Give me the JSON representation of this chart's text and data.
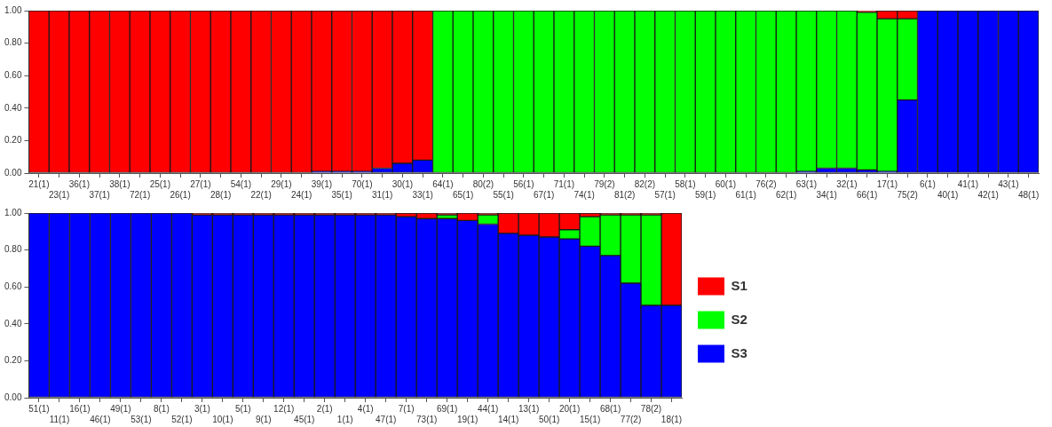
{
  "chart_data": [
    {
      "type": "bar",
      "stacked": true,
      "legend": false,
      "grid": false,
      "categories": [
        "21(1)",
        "23(1)",
        "36(1)",
        "37(1)",
        "38(1)",
        "72(1)",
        "25(1)",
        "26(1)",
        "27(1)",
        "28(1)",
        "54(1)",
        "22(1)",
        "29(1)",
        "24(1)",
        "39(1)",
        "35(1)",
        "70(1)",
        "31(1)",
        "30(1)",
        "33(1)",
        "64(1)",
        "65(1)",
        "80(2)",
        "55(1)",
        "56(1)",
        "67(1)",
        "71(1)",
        "74(1)",
        "79(2)",
        "81(2)",
        "82(2)",
        "57(1)",
        "58(1)",
        "59(1)",
        "60(1)",
        "61(1)",
        "76(2)",
        "62(1)",
        "63(1)",
        "34(1)",
        "32(1)",
        "66(1)",
        "17(1)",
        "75(2)",
        "6(1)",
        "40(1)",
        "41(1)",
        "42(1)",
        "43(1)",
        "48(1)"
      ],
      "ylim": [
        0,
        1
      ],
      "yticks": [
        {
          "value": 0,
          "label": "0.00"
        },
        {
          "value": 0.2,
          "label": "0.20"
        },
        {
          "value": 0.4,
          "label": "0.40"
        },
        {
          "value": 0.6,
          "label": "0.60"
        },
        {
          "value": 0.8,
          "label": "0.80"
        },
        {
          "value": 1,
          "label": "1.00"
        }
      ],
      "series": [
        {
          "color": "#0000ff",
          "values": [
            0,
            0,
            0,
            0,
            0,
            0,
            0,
            0,
            0,
            0,
            0,
            0,
            0,
            0,
            0.01,
            0.01,
            0.01,
            0.03,
            0.06,
            0.08,
            0,
            0,
            0,
            0,
            0,
            0,
            0,
            0,
            0,
            0,
            0,
            0,
            0,
            0,
            0,
            0,
            0,
            0,
            0.01,
            0.03,
            0.03,
            0.02,
            0.01,
            0.45,
            1,
            1,
            1,
            1,
            1,
            1
          ]
        },
        {
          "color": "#00ff00",
          "values": [
            0,
            0,
            0,
            0,
            0,
            0,
            0,
            0,
            0,
            0,
            0,
            0,
            0,
            0,
            0,
            0,
            0,
            0,
            0,
            0,
            1,
            1,
            1,
            1,
            1,
            1,
            1,
            1,
            1,
            1,
            1,
            1,
            1,
            1,
            1,
            1,
            1,
            1,
            0.99,
            0.97,
            0.97,
            0.97,
            0.94,
            0.5,
            0,
            0,
            0,
            0,
            0,
            0
          ]
        },
        {
          "color": "#ff0000",
          "values": [
            1,
            1,
            1,
            1,
            1,
            1,
            1,
            1,
            1,
            1,
            1,
            1,
            1,
            1,
            0.99,
            0.99,
            0.99,
            0.97,
            0.94,
            0.92,
            0,
            0,
            0,
            0,
            0,
            0,
            0,
            0,
            0,
            0,
            0,
            0,
            0,
            0,
            0,
            0,
            0,
            0,
            0,
            0,
            0,
            0.01,
            0.05,
            0.05,
            0,
            0,
            0,
            0,
            0,
            0
          ]
        }
      ]
    },
    {
      "type": "bar",
      "stacked": true,
      "legend": "right",
      "grid": false,
      "categories": [
        "51(1)",
        "11(1)",
        "16(1)",
        "46(1)",
        "49(1)",
        "53(1)",
        "8(1)",
        "52(1)",
        "3(1)",
        "10(1)",
        "5(1)",
        "9(1)",
        "12(1)",
        "45(1)",
        "2(1)",
        "1(1)",
        "4(1)",
        "47(1)",
        "7(1)",
        "73(1)",
        "69(1)",
        "19(1)",
        "44(1)",
        "14(1)",
        "13(1)",
        "50(1)",
        "20(1)",
        "15(1)",
        "68(1)",
        "77(2)",
        "78(2)",
        "18(1)"
      ],
      "ylim": [
        0,
        1
      ],
      "yticks": [
        {
          "value": 0,
          "label": "0.00"
        },
        {
          "value": 0.2,
          "label": "0.20"
        },
        {
          "value": 0.4,
          "label": "0.40"
        },
        {
          "value": 0.6,
          "label": "0.60"
        },
        {
          "value": 0.8,
          "label": "0.80"
        },
        {
          "value": 1,
          "label": "1.00"
        }
      ],
      "series": [
        {
          "name": "S3",
          "color": "#0000ff",
          "values": [
            1,
            1,
            1,
            1,
            1,
            1,
            1,
            1,
            0.99,
            0.99,
            0.99,
            0.99,
            0.99,
            0.99,
            0.99,
            0.99,
            0.99,
            0.99,
            0.98,
            0.97,
            0.97,
            0.96,
            0.94,
            0.89,
            0.88,
            0.87,
            0.86,
            0.82,
            0.77,
            0.62,
            0.5,
            0.5
          ]
        },
        {
          "name": "S2",
          "color": "#00ff00",
          "values": [
            0,
            0,
            0,
            0,
            0,
            0,
            0,
            0,
            0,
            0,
            0,
            0,
            0,
            0,
            0,
            0,
            0,
            0,
            0,
            0,
            0.02,
            0,
            0.05,
            0,
            0,
            0,
            0.05,
            0.16,
            0.22,
            0.37,
            0.49,
            0
          ]
        },
        {
          "name": "S1",
          "color": "#ff0000",
          "values": [
            0,
            0,
            0,
            0,
            0,
            0,
            0,
            0,
            0.01,
            0.01,
            0.01,
            0.01,
            0.01,
            0.01,
            0.01,
            0.01,
            0.01,
            0.01,
            0.02,
            0.03,
            0.01,
            0.04,
            0.01,
            0.11,
            0.12,
            0.13,
            0.09,
            0.02,
            0.01,
            0.01,
            0.01,
            0.5
          ]
        }
      ]
    }
  ]
}
